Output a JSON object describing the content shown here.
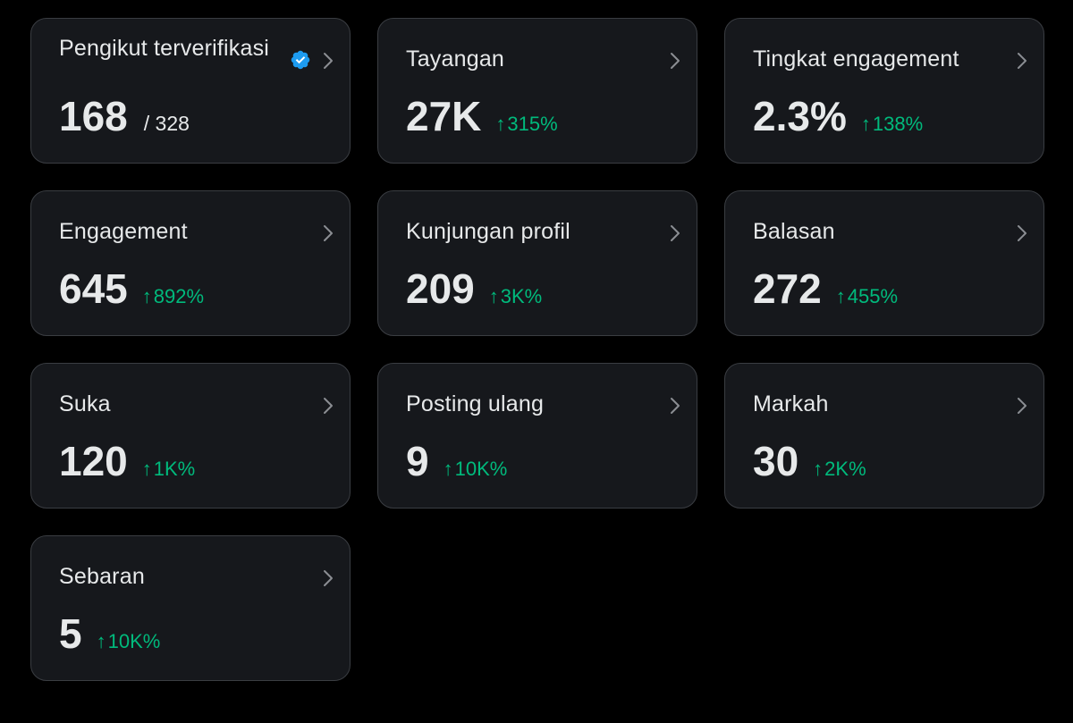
{
  "colors": {
    "page_bg": "#000000",
    "card_bg": "#16181c",
    "card_border": "#3a3d42",
    "text": "#e7e9ea",
    "positive": "#00ba7c",
    "verified": "#1d9bf0"
  },
  "icons": {
    "verified": "verified-badge-icon",
    "chevron": "chevron-right-icon",
    "trend": "arrow-up-icon"
  },
  "cards": [
    {
      "id": "verified-followers",
      "title": "Pengikut terverifikasi",
      "value": "168",
      "total": "/ 328",
      "verified": true
    },
    {
      "id": "views",
      "title": "Tayangan",
      "value": "27K",
      "arrow": "↑",
      "change": "315%"
    },
    {
      "id": "engagement-rate",
      "title": "Tingkat engagement",
      "value": "2.3%",
      "arrow": "↑",
      "change": "138%"
    },
    {
      "id": "engagement",
      "title": "Engagement",
      "value": "645",
      "arrow": "↑",
      "change": "892%"
    },
    {
      "id": "profile-visits",
      "title": "Kunjungan profil",
      "value": "209",
      "arrow": "↑",
      "change": "3K%"
    },
    {
      "id": "replies",
      "title": "Balasan",
      "value": "272",
      "arrow": "↑",
      "change": "455%"
    },
    {
      "id": "likes",
      "title": "Suka",
      "value": "120",
      "arrow": "↑",
      "change": "1K%"
    },
    {
      "id": "reposts",
      "title": "Posting ulang",
      "value": "9",
      "arrow": "↑",
      "change": "10K%"
    },
    {
      "id": "bookmarks",
      "title": "Markah",
      "value": "30",
      "arrow": "↑",
      "change": "2K%"
    },
    {
      "id": "shares",
      "title": "Sebaran",
      "value": "5",
      "arrow": "↑",
      "change": "10K%"
    }
  ]
}
